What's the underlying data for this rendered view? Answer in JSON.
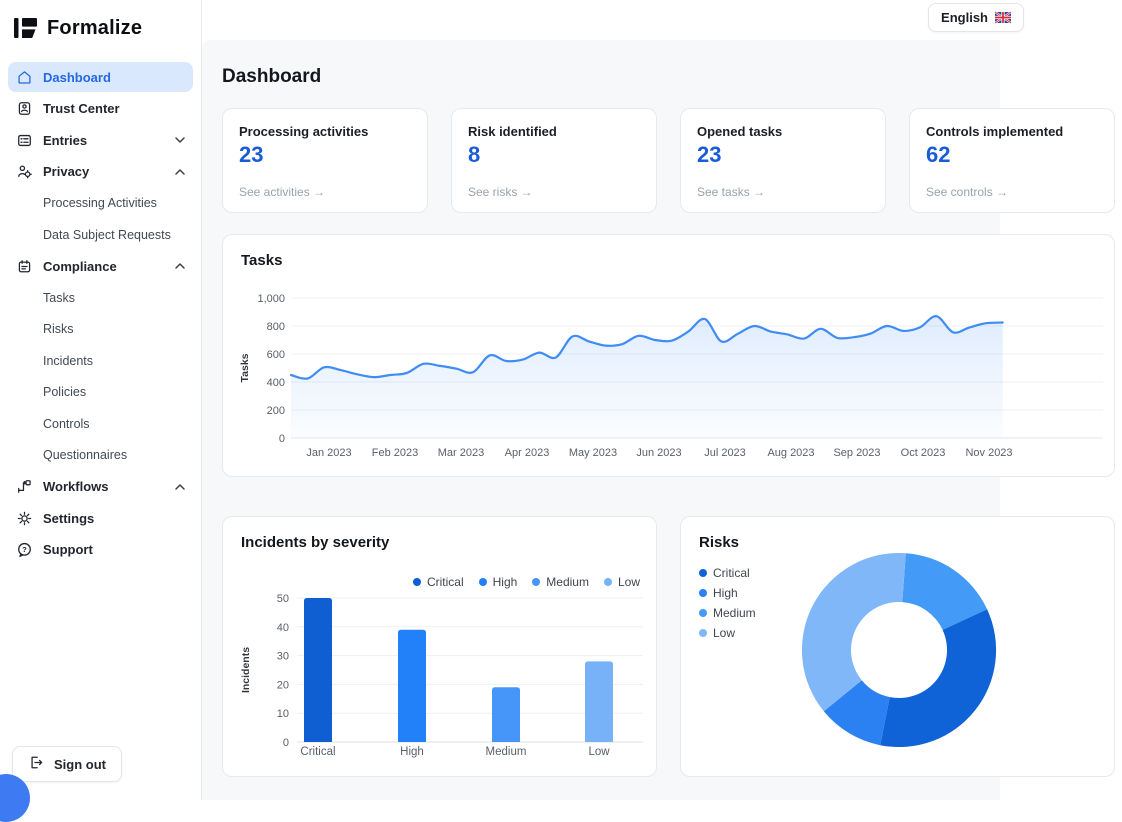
{
  "brand": {
    "name": "Formalize"
  },
  "language_button": {
    "label": "English",
    "flag": "uk"
  },
  "page": {
    "title": "Dashboard"
  },
  "sidebar": {
    "items": [
      {
        "label": "Dashboard",
        "icon": "home-icon",
        "active": true
      },
      {
        "label": "Trust Center",
        "icon": "badge-icon"
      },
      {
        "label": "Entries",
        "icon": "entries-icon",
        "chevron": "down"
      },
      {
        "label": "Privacy",
        "icon": "privacy-icon",
        "chevron": "up",
        "children": [
          "Processing Activities",
          "Data Subject Requests"
        ]
      },
      {
        "label": "Compliance",
        "icon": "compliance-icon",
        "chevron": "up",
        "children": [
          "Tasks",
          "Risks",
          "Incidents",
          "Policies",
          "Controls",
          "Questionnaires"
        ]
      },
      {
        "label": "Workflows",
        "icon": "workflow-icon",
        "chevron": "up"
      },
      {
        "label": "Settings",
        "icon": "gear-icon"
      },
      {
        "label": "Support",
        "icon": "help-icon"
      }
    ],
    "sign_out_label": "Sign out"
  },
  "stat_cards": [
    {
      "title": "Processing activities",
      "value": "23",
      "link": "See activities →"
    },
    {
      "title": "Risk identified",
      "value": "8",
      "link": "See risks →"
    },
    {
      "title": "Opened tasks",
      "value": "23",
      "link": "See tasks →"
    },
    {
      "title": "Controls implemented",
      "value": "62",
      "link": "See controls →"
    }
  ],
  "colors": {
    "accent_blue": "#2468e4",
    "stat_number_blue": "#1a5cd7",
    "active_item_bg": "#d9e8fd",
    "line_blue": "#3e8cf4",
    "bar_palette": [
      "#0f5ed2",
      "#2281f8",
      "#4596f8",
      "#77b2f9"
    ],
    "donut_palette": [
      "#1063d6",
      "#2b80f2",
      "#449af7",
      "#80b7f9"
    ]
  },
  "chart_data": [
    {
      "type": "line",
      "title": "Tasks",
      "ylabel": "Tasks",
      "ylim": [
        0,
        1000
      ],
      "yticks": [
        0,
        200,
        400,
        600,
        800,
        1000
      ],
      "ytick_labels": [
        "0",
        "200",
        "400",
        "600",
        "800",
        "1,000"
      ],
      "x_labels": [
        "Jan 2023",
        "Feb 2023",
        "Mar 2023",
        "Apr 2023",
        "May 2023",
        "Jun 2023",
        "Jul 2023",
        "Aug 2023",
        "Sep 2023",
        "Oct 2023",
        "Nov 2023"
      ],
      "points_per_month": 4,
      "values": [
        450,
        425,
        505,
        485,
        455,
        435,
        450,
        465,
        530,
        515,
        495,
        470,
        590,
        550,
        560,
        610,
        575,
        725,
        690,
        660,
        670,
        730,
        700,
        695,
        760,
        850,
        690,
        745,
        800,
        760,
        740,
        710,
        780,
        715,
        720,
        745,
        800,
        765,
        790,
        870,
        755,
        790,
        820,
        825
      ],
      "grid": true,
      "area_fill": true,
      "legend_position": "none"
    },
    {
      "type": "bar",
      "title": "Incidents by severity",
      "ylabel": "Incidents",
      "categories": [
        "Critical",
        "High",
        "Medium",
        "Low"
      ],
      "values": [
        50,
        39,
        19,
        28
      ],
      "ylim": [
        0,
        50
      ],
      "yticks": [
        0,
        10,
        20,
        30,
        40,
        50
      ],
      "grid": true,
      "legend_position": "top-right"
    },
    {
      "type": "donut",
      "title": "Risks",
      "labels": [
        "Critical",
        "High",
        "Medium",
        "Low"
      ],
      "values": [
        35,
        11,
        17,
        37
      ],
      "display_order": [
        "Medium",
        "Critical",
        "High",
        "Low"
      ],
      "start_angle_deg": 4,
      "legend_position": "left"
    }
  ]
}
